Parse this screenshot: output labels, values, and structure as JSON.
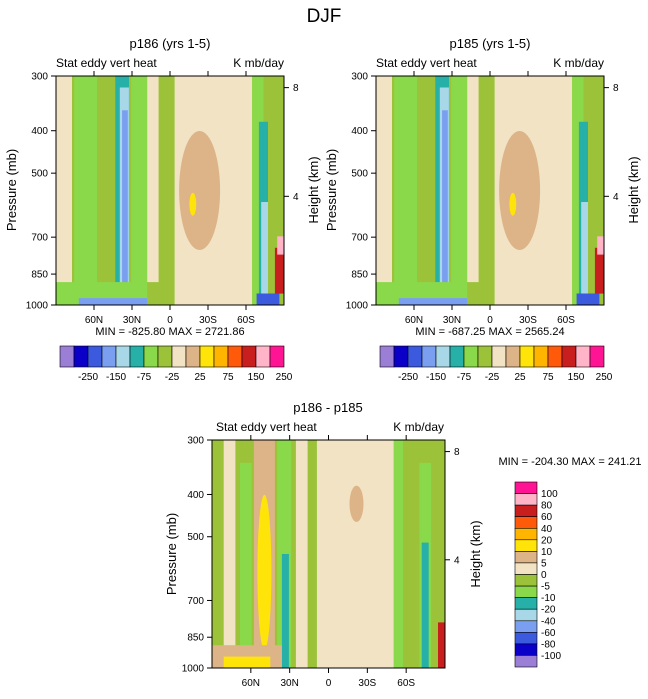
{
  "figure_title": "DJF",
  "colors": {
    "palette_top": [
      "#9b7fd6",
      "#0a00c8",
      "#3c5ade",
      "#7a9ef0",
      "#a8d8e8",
      "#26b0a8",
      "#8ad94a",
      "#9cc23a",
      "#f2e3c4",
      "#dcb488",
      "#ffe40a",
      "#ffb400",
      "#ff5a0a",
      "#c81e1e",
      "#ffb4c8",
      "#ff1493"
    ],
    "palette_diff": [
      "#9b7fd6",
      "#0a00c8",
      "#3c5ade",
      "#7a9ef0",
      "#a8d8e8",
      "#26b0a8",
      "#8ad94a",
      "#9cc23a",
      "#f2e3c4",
      "#dcb488",
      "#ffe40a",
      "#ffb400",
      "#ff5a0a",
      "#c81e1e",
      "#ffb4c8",
      "#ff1493"
    ],
    "background_field": "#9cc23a"
  },
  "chart_data": [
    {
      "type": "heatmap",
      "title": "p186 (yrs 1-5)",
      "left_label": "Stat eddy vert heat",
      "right_label": "K mb/day",
      "ylabel": "Pressure (mb)",
      "y2label": "Height (km)",
      "x_ticks": [
        "60N",
        "30N",
        "0",
        "30S",
        "60S"
      ],
      "x_tick_lat": [
        60,
        30,
        0,
        -30,
        -60
      ],
      "xlim": [
        90,
        -90
      ],
      "y_ticks": [
        "300",
        "400",
        "500",
        "700",
        "850",
        "1000"
      ],
      "y_tick_values": [
        300,
        400,
        500,
        700,
        850,
        1000
      ],
      "ylim": [
        300,
        1000
      ],
      "y2_ticks": [
        "8",
        "4"
      ],
      "y2_tick_values": [
        8,
        4
      ],
      "min_max": "MIN = -825.80   MAX = 2721.86",
      "colorbar_labels": [
        "-250",
        "-150",
        "-75",
        "-25",
        "25",
        "75",
        "150",
        "250"
      ],
      "colorbar_levels": [
        -250,
        -200,
        -150,
        -100,
        -75,
        -50,
        -25,
        -10,
        10,
        25,
        50,
        75,
        100,
        150,
        200,
        250
      ]
    },
    {
      "type": "heatmap",
      "title": "p185 (yrs 1-5)",
      "left_label": "Stat eddy vert heat",
      "right_label": "K mb/day",
      "ylabel": "Pressure (mb)",
      "y2label": "Height (km)",
      "x_ticks": [
        "60N",
        "30N",
        "0",
        "30S",
        "60S"
      ],
      "x_tick_lat": [
        60,
        30,
        0,
        -30,
        -60
      ],
      "xlim": [
        90,
        -90
      ],
      "y_ticks": [
        "300",
        "400",
        "500",
        "700",
        "850",
        "1000"
      ],
      "y_tick_values": [
        300,
        400,
        500,
        700,
        850,
        1000
      ],
      "ylim": [
        300,
        1000
      ],
      "y2_ticks": [
        "8",
        "4"
      ],
      "y2_tick_values": [
        8,
        4
      ],
      "min_max": "MIN = -687.25   MAX = 2565.24",
      "colorbar_labels": [
        "-250",
        "-150",
        "-75",
        "-25",
        "25",
        "75",
        "150",
        "250"
      ],
      "colorbar_levels": [
        -250,
        -200,
        -150,
        -100,
        -75,
        -50,
        -25,
        -10,
        10,
        25,
        50,
        75,
        100,
        150,
        200,
        250
      ]
    },
    {
      "type": "heatmap",
      "title": "p186 - p185",
      "left_label": "Stat eddy vert heat",
      "right_label": "K mb/day",
      "ylabel": "Pressure (mb)",
      "y2label": "Height (km)",
      "x_ticks": [
        "60N",
        "30N",
        "0",
        "30S",
        "60S"
      ],
      "x_tick_lat": [
        60,
        30,
        0,
        -30,
        -60
      ],
      "xlim": [
        90,
        -90
      ],
      "y_ticks": [
        "300",
        "400",
        "500",
        "700",
        "850",
        "1000"
      ],
      "y_tick_values": [
        300,
        400,
        500,
        700,
        850,
        1000
      ],
      "ylim": [
        300,
        1000
      ],
      "y2_ticks": [
        "8",
        "4"
      ],
      "y2_tick_values": [
        8,
        4
      ],
      "min_max": "MIN = -204.30   MAX = 241.21",
      "colorbar_labels": [
        "100",
        "80",
        "60",
        "40",
        "20",
        "10",
        "5",
        "0",
        "-5",
        "-10",
        "-20",
        "-40",
        "-60",
        "-80",
        "-100"
      ],
      "colorbar_levels": [
        -100,
        -80,
        -60,
        -40,
        -20,
        -10,
        -5,
        0,
        5,
        10,
        20,
        40,
        60,
        80,
        100
      ]
    }
  ]
}
